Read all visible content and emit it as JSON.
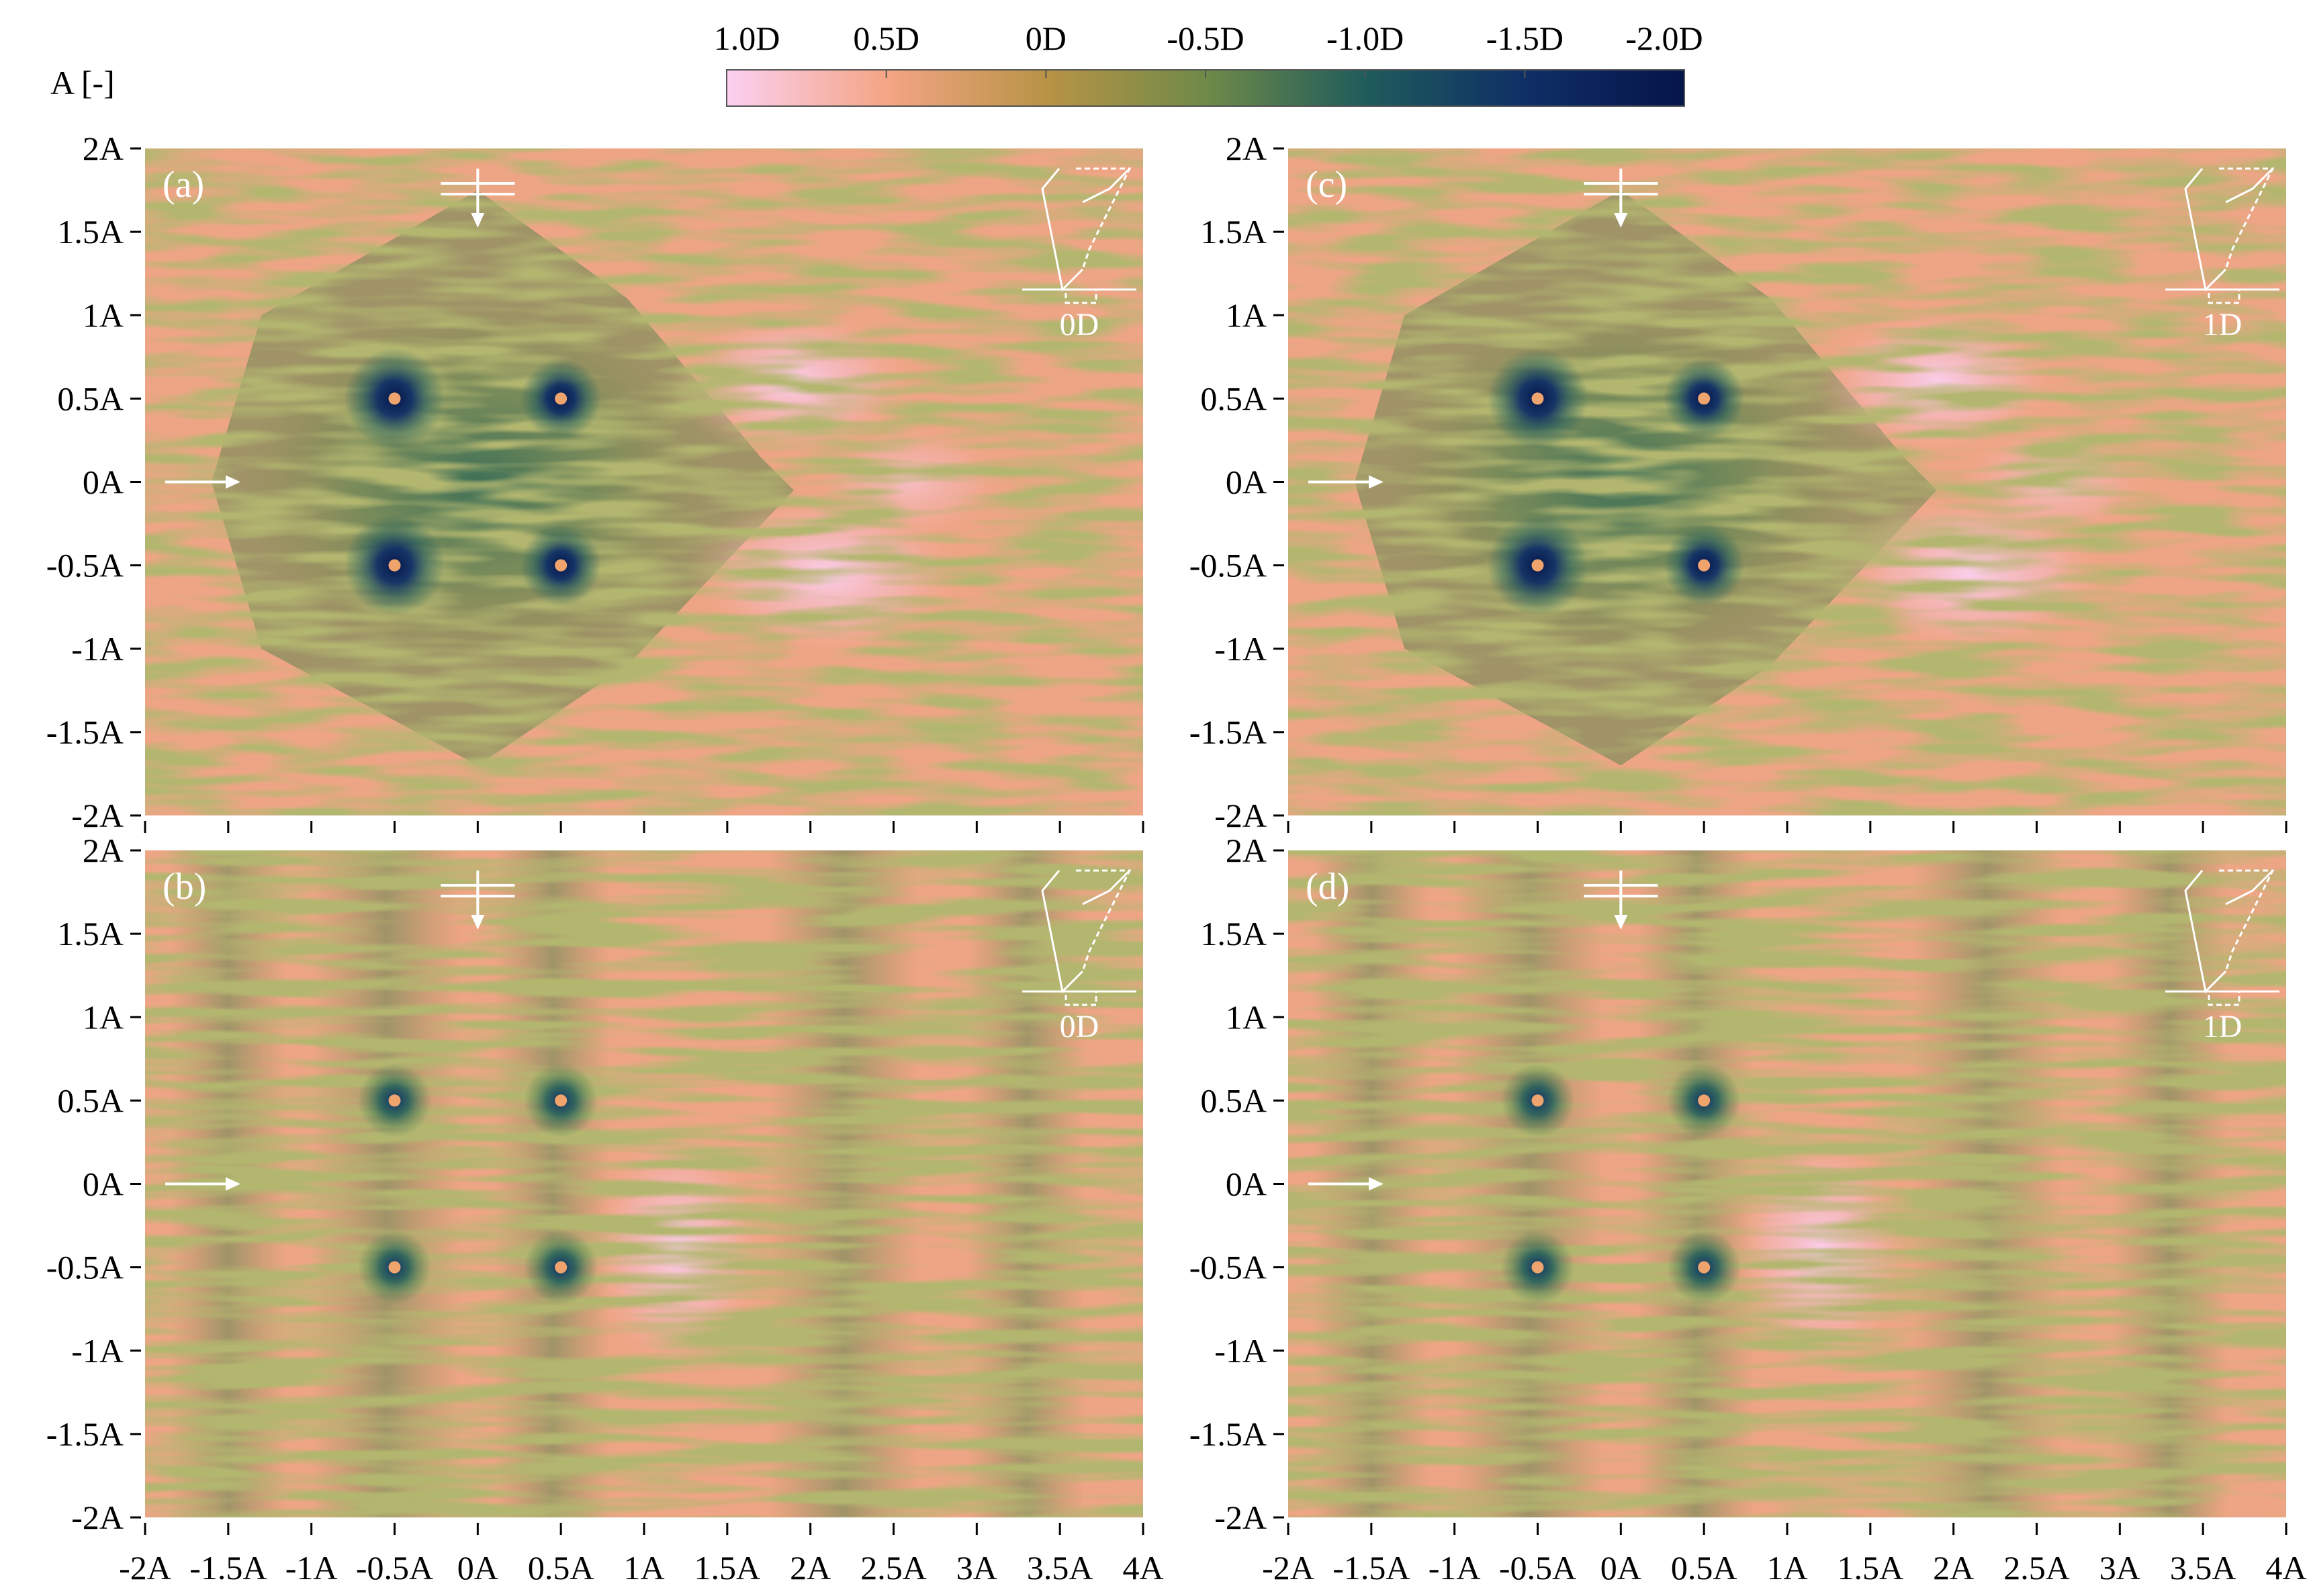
{
  "colorbar": {
    "unit_label": "A [-]",
    "tick_labels": [
      "1.0D",
      "0.5D",
      "0D",
      "-0.5D",
      "-1.0D",
      "-1.5D",
      "-2.0D"
    ],
    "range": [
      1.0,
      -2.0
    ],
    "colors": [
      "#fbd0f0",
      "#f4a585",
      "#b89345",
      "#6f8a48",
      "#1f5c5b",
      "#0f2f66",
      "#05154a"
    ]
  },
  "chart_data": [
    {
      "type": "heatmap",
      "panel_label": "(a)",
      "inset_label": "0D",
      "x_tick_labels": [
        "-2A",
        "-1.5A",
        "-1A",
        "-0.5A",
        "0A",
        "0.5A",
        "1A",
        "1.5A",
        "2A",
        "2.5A",
        "3A",
        "3.5A",
        "4A"
      ],
      "y_tick_labels": [
        "2A",
        "1.5A",
        "1A",
        "0.5A",
        "0A",
        "-0.5A",
        "-1A",
        "-1.5A",
        "-2A"
      ],
      "xlim": [
        -2,
        4
      ],
      "ylim": [
        -2,
        2
      ],
      "cylinders": [
        [
          -0.5,
          0.5
        ],
        [
          0.5,
          0.5
        ],
        [
          -0.5,
          -0.5
        ],
        [
          0.5,
          -0.5
        ]
      ],
      "wake": "merged",
      "shade": "darker"
    },
    {
      "type": "heatmap",
      "panel_label": "(b)",
      "inset_label": "0D",
      "x_tick_labels": [
        "-2A",
        "-1.5A",
        "-1A",
        "-0.5A",
        "0A",
        "0.5A",
        "1A",
        "1.5A",
        "2A",
        "2.5A",
        "3A",
        "3.5A",
        "4A"
      ],
      "y_tick_labels": [
        "2A",
        "1.5A",
        "1A",
        "0.5A",
        "0A",
        "-0.5A",
        "-1A",
        "-1.5A",
        "-2A"
      ],
      "xlim": [
        -2,
        4
      ],
      "ylim": [
        -2,
        2
      ],
      "cylinders": [
        [
          -0.5,
          0.5
        ],
        [
          0.5,
          0.5
        ],
        [
          -0.5,
          -0.5
        ],
        [
          0.5,
          -0.5
        ]
      ],
      "wake": "banded",
      "shade": "lighter"
    },
    {
      "type": "heatmap",
      "panel_label": "(c)",
      "inset_label": "1D",
      "x_tick_labels": [
        "-2A",
        "-1.5A",
        "-1A",
        "-0.5A",
        "0A",
        "0.5A",
        "1A",
        "1.5A",
        "2A",
        "2.5A",
        "3A",
        "3.5A",
        "4A"
      ],
      "y_tick_labels": [
        "2A",
        "1.5A",
        "1A",
        "0.5A",
        "0A",
        "-0.5A",
        "-1A",
        "-1.5A",
        "-2A"
      ],
      "xlim": [
        -2,
        4
      ],
      "ylim": [
        -2,
        2
      ],
      "cylinders": [
        [
          -0.5,
          0.5
        ],
        [
          0.5,
          0.5
        ],
        [
          -0.5,
          -0.5
        ],
        [
          0.5,
          -0.5
        ]
      ],
      "wake": "merged",
      "shade": "darker"
    },
    {
      "type": "heatmap",
      "panel_label": "(d)",
      "inset_label": "1D",
      "x_tick_labels": [
        "-2A",
        "-1.5A",
        "-1A",
        "-0.5A",
        "0A",
        "0.5A",
        "1A",
        "1.5A",
        "2A",
        "2.5A",
        "3A",
        "3.5A",
        "4A"
      ],
      "y_tick_labels": [
        "2A",
        "1.5A",
        "1A",
        "0.5A",
        "0A",
        "-0.5A",
        "-1A",
        "-1.5A",
        "-2A"
      ],
      "xlim": [
        -2,
        4
      ],
      "ylim": [
        -2,
        2
      ],
      "cylinders": [
        [
          -0.5,
          0.5
        ],
        [
          0.5,
          0.5
        ],
        [
          -0.5,
          -0.5
        ],
        [
          0.5,
          -0.5
        ]
      ],
      "wake": "banded",
      "shade": "lighter"
    }
  ]
}
